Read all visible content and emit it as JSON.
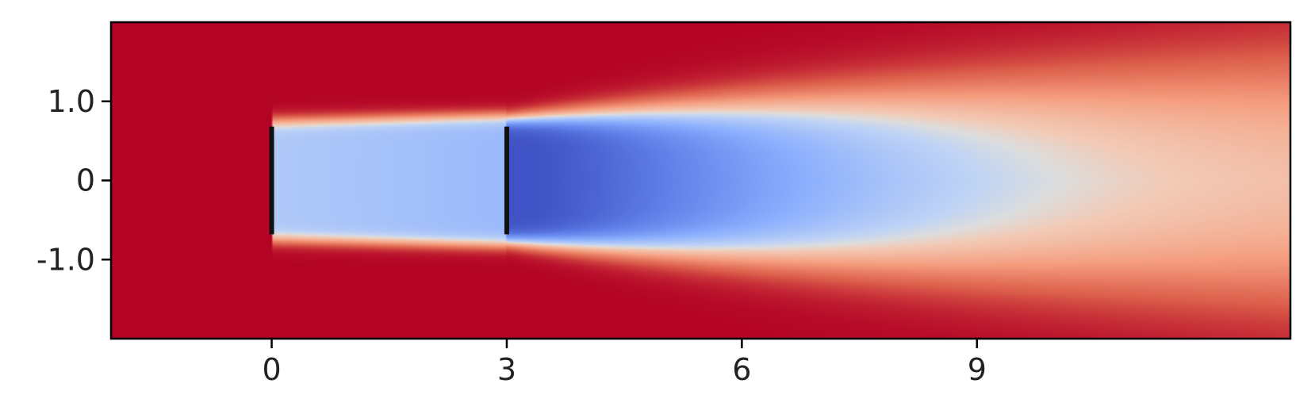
{
  "chart_data": {
    "type": "heatmap",
    "title": "",
    "xlabel": "",
    "ylabel": "",
    "xlim": [
      -2.05,
      13.0
    ],
    "ylim": [
      -2.0,
      2.0
    ],
    "x_ticks": [
      {
        "value": 0,
        "label": "0"
      },
      {
        "value": 3,
        "label": "3"
      },
      {
        "value": 6,
        "label": "6"
      },
      {
        "value": 9,
        "label": "9"
      }
    ],
    "y_ticks": [
      {
        "value": 1.0,
        "label": "1.0"
      },
      {
        "value": 0,
        "label": "0"
      },
      {
        "value": -1.0,
        "label": "-1.0"
      }
    ],
    "colormap": "coolwarm",
    "colorbar": false,
    "grid": false,
    "legend": "none",
    "annotations": [
      {
        "type": "vertical-bar",
        "x": 0,
        "y_range": [
          -0.68,
          0.68
        ],
        "color": "#111111"
      },
      {
        "type": "vertical-bar",
        "x": 3,
        "y_range": [
          -0.68,
          0.68
        ],
        "color": "#111111"
      }
    ]
  }
}
